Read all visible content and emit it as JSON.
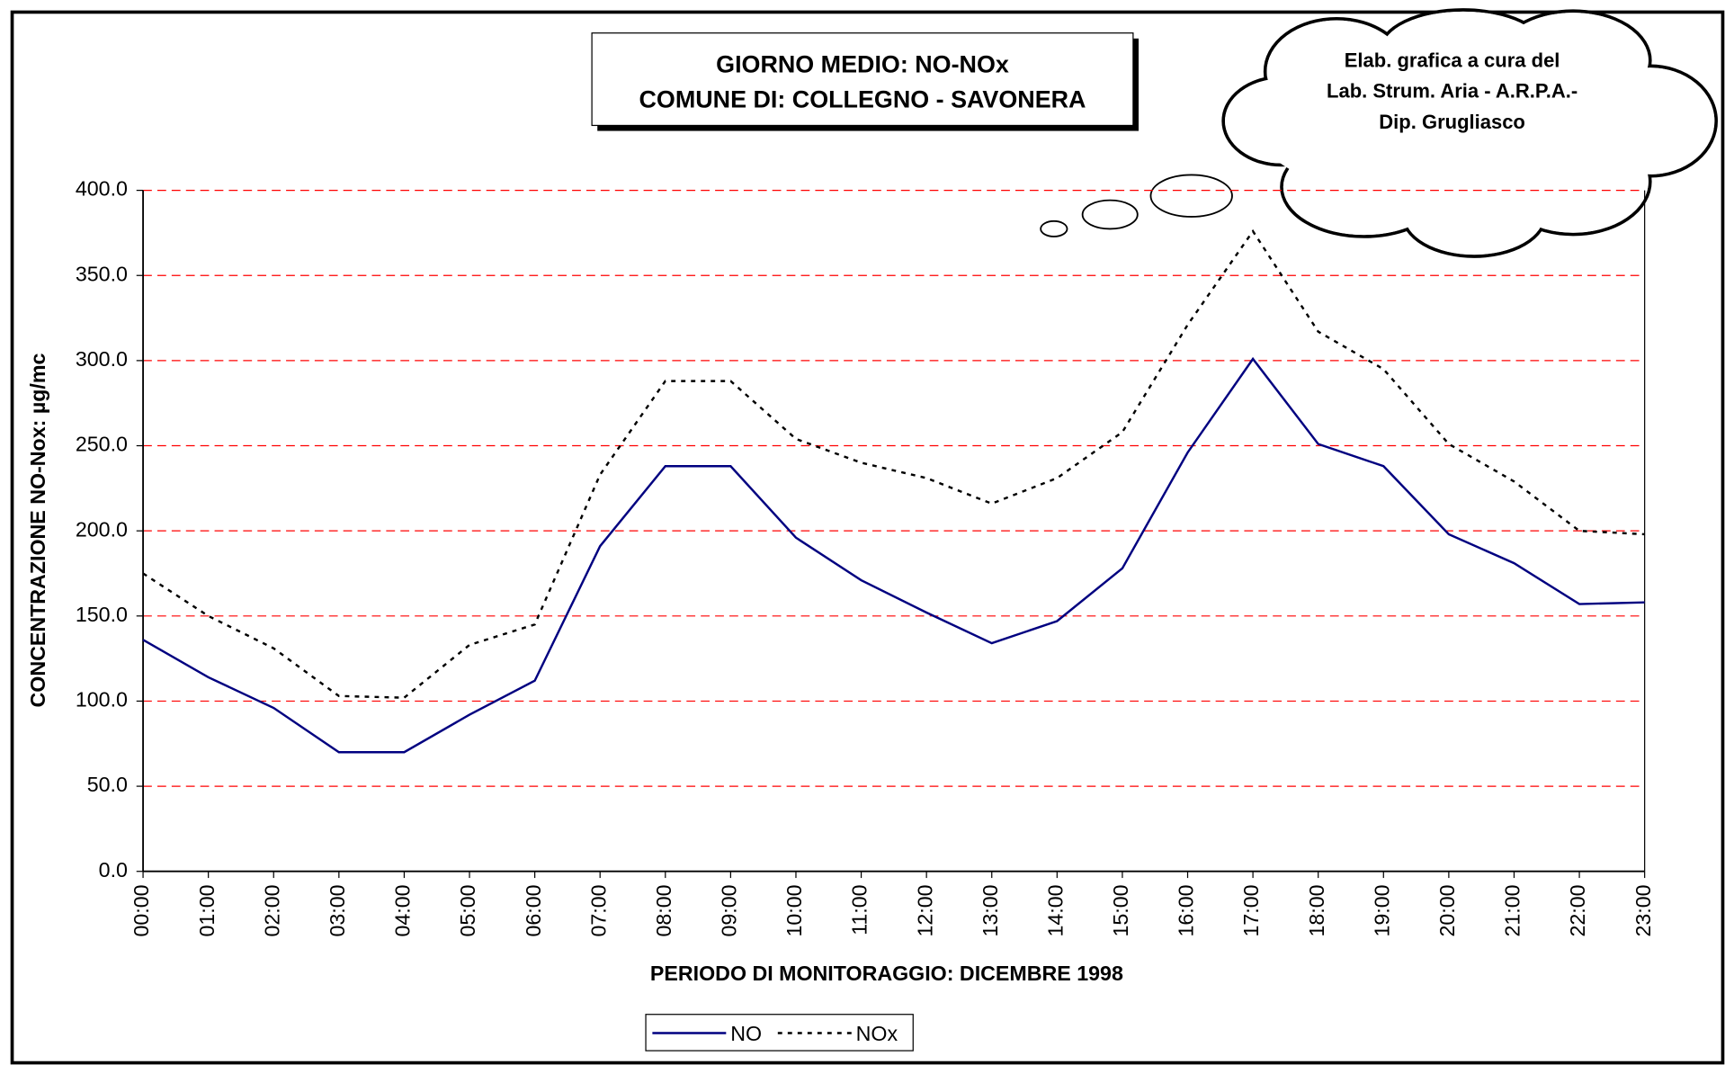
{
  "chart_data": {
    "type": "line",
    "title": [
      "GIORNO MEDIO: NO-NOx",
      "COMUNE DI: COLLEGNO - SAVONERA"
    ],
    "annotation": [
      "Elab. grafica a cura del",
      "Lab. Strum. Aria - A.R.P.A.-",
      "Dip. Grugliasco"
    ],
    "x_label": "PERIODO DI MONITORAGGIO: DICEMBRE 1998",
    "y_label": "CONCENTRAZIONE NO-Nox: µg/mc",
    "categories": [
      "00:00",
      "01:00",
      "02:00",
      "03:00",
      "04:00",
      "05:00",
      "06:00",
      "07:00",
      "08:00",
      "09:00",
      "10:00",
      "11:00",
      "12:00",
      "13:00",
      "14:00",
      "15:00",
      "16:00",
      "17:00",
      "18:00",
      "19:00",
      "20:00",
      "21:00",
      "22:00",
      "23:00"
    ],
    "series": [
      {
        "name": "NO",
        "color": "#000080",
        "dash": "solid",
        "values": [
          136,
          114,
          96,
          70,
          70,
          92,
          112,
          191,
          238,
          238,
          196,
          171,
          152,
          134,
          147,
          178,
          246,
          301,
          251,
          238,
          198,
          181,
          157,
          158
        ]
      },
      {
        "name": "NOx",
        "color": "#000000",
        "dash": "dotted",
        "values": [
          175,
          150,
          131,
          103,
          102,
          133,
          145,
          233,
          288,
          288,
          254,
          240,
          231,
          216,
          231,
          258,
          321,
          376,
          317,
          295,
          251,
          229,
          200,
          198
        ]
      }
    ],
    "ylim": [
      0,
      400
    ],
    "yticks": [
      {
        "value": 0,
        "label": "0.0"
      },
      {
        "value": 50,
        "label": "50.0"
      },
      {
        "value": 100,
        "label": "100.0"
      },
      {
        "value": 150,
        "label": "150.0"
      },
      {
        "value": 200,
        "label": "200.0"
      },
      {
        "value": 250,
        "label": "250.0"
      },
      {
        "value": 300,
        "label": "300.0"
      },
      {
        "value": 350,
        "label": "350.0"
      },
      {
        "value": 400,
        "label": "400.0"
      }
    ],
    "grid": true,
    "grid_color": "#ff0000",
    "legend": "bottom"
  }
}
